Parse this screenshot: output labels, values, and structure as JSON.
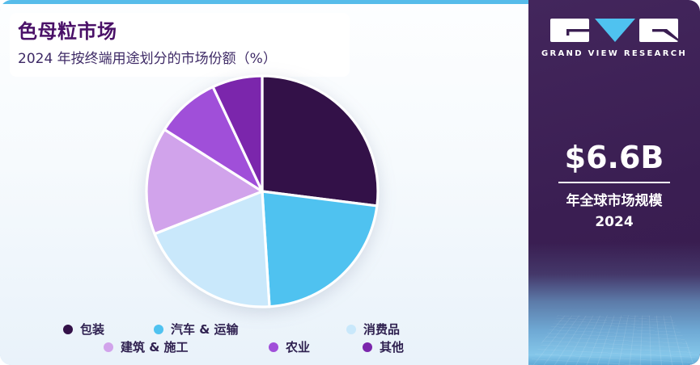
{
  "header": {
    "title": "色母粒市场",
    "subtitle": "2024 年按终端用途划分的市场份额（%）"
  },
  "sidebar": {
    "brand": "GRAND VIEW RESEARCH",
    "stat_value": "$6.6B",
    "stat_label_line1": "年全球市场规模",
    "stat_label_line2": "2024"
  },
  "colors": {
    "accent_cyan": "#56BCEA",
    "sidebar_purple": "#3A1E52",
    "title_purple": "#4A1168",
    "legend_text": "#2F2150"
  },
  "chart_data": {
    "type": "pie",
    "title": "色母粒市场",
    "subtitle": "2024 年按终端用途划分的市场份额（%）",
    "unit": "%",
    "start_angle_deg": 0,
    "direction": "clockwise",
    "legend_position": "bottom",
    "categories": [
      "包装",
      "汽车 & 运输",
      "消费品",
      "建筑 & 施工",
      "农业",
      "其他"
    ],
    "values": [
      27,
      22,
      20,
      15,
      9,
      7
    ],
    "colors": [
      "#331148",
      "#4FC2F0",
      "#C9E8FB",
      "#D1A3EB",
      "#A04FD9",
      "#7B26AC"
    ],
    "slice_keys": [
      "packaging",
      "automotive-transportation",
      "consumer-goods",
      "building-construction",
      "agriculture",
      "others"
    ]
  }
}
